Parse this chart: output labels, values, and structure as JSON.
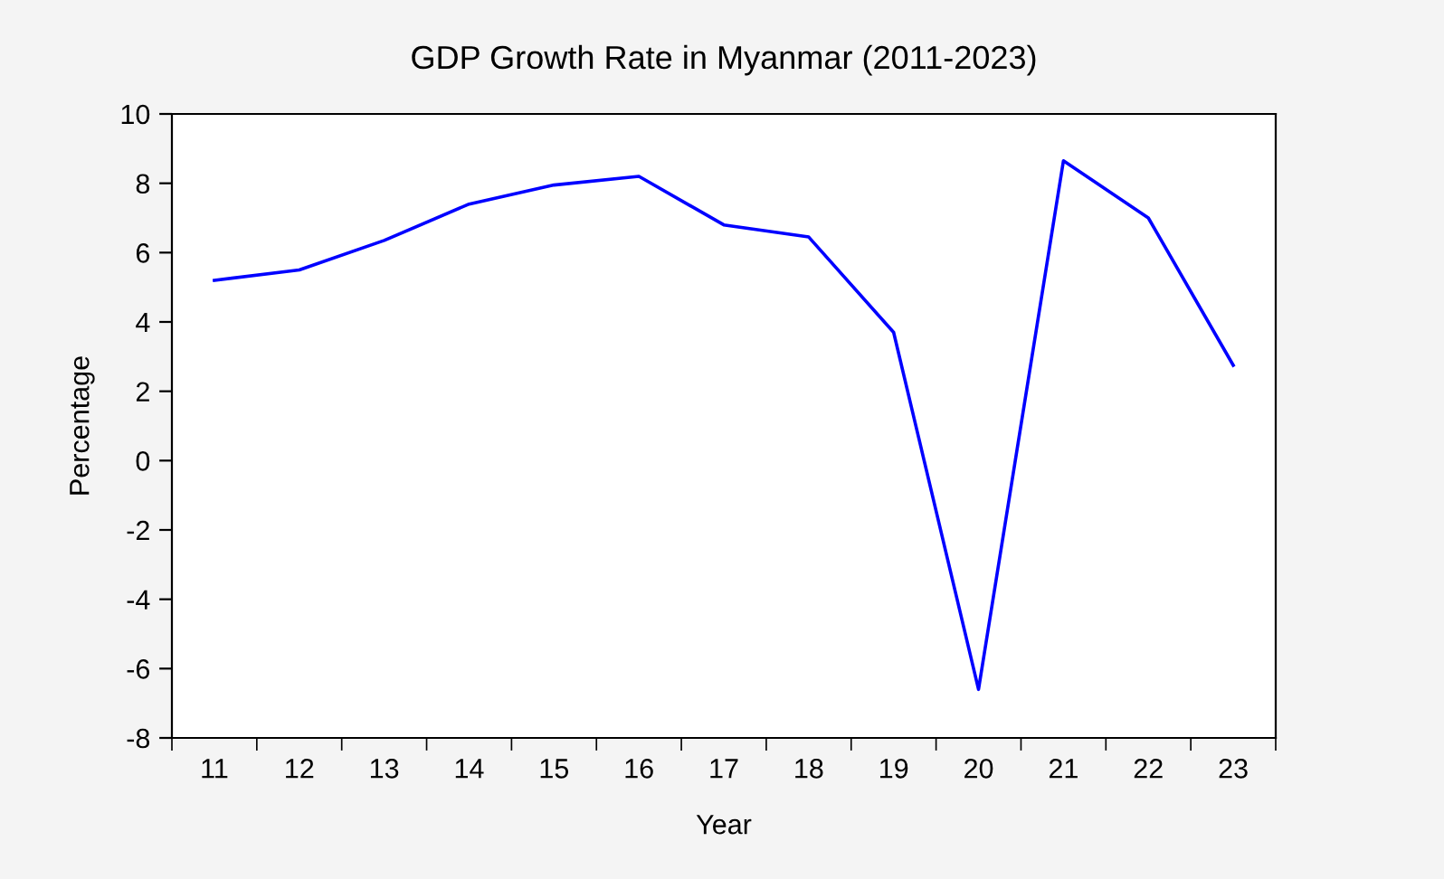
{
  "chart_data": {
    "type": "line",
    "title": "GDP Growth Rate in Myanmar (2011-2023)",
    "xlabel": "Year",
    "ylabel": "Percentage",
    "categories": [
      "11",
      "12",
      "13",
      "14",
      "15",
      "16",
      "17",
      "18",
      "19",
      "20",
      "21",
      "22",
      "23"
    ],
    "series": [
      {
        "color": "#0000ff",
        "values": [
          5.2,
          5.5,
          6.35,
          7.4,
          7.95,
          8.2,
          6.8,
          6.45,
          3.7,
          -6.6,
          8.65,
          7.0,
          2.75
        ]
      }
    ],
    "ylim": [
      -8,
      10
    ],
    "yticks": [
      -8,
      -6,
      -4,
      -2,
      0,
      2,
      4,
      6,
      8,
      10
    ],
    "grid": false,
    "marker": "none",
    "line_style": "solid"
  }
}
